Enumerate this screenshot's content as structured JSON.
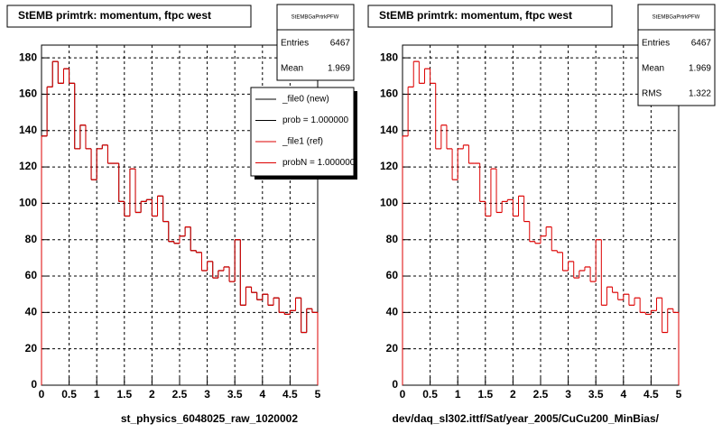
{
  "chart_data": [
    {
      "type": "histogram",
      "title": "StEMB primtrk: momentum, ftpc west",
      "x_label": "st_physics_6048025_raw_1020002",
      "bins": [
        0,
        0.1,
        0.2,
        0.3,
        0.4,
        0.5,
        0.6,
        0.7,
        0.8,
        0.9,
        1,
        1.1,
        1.2,
        1.3,
        1.4,
        1.5,
        1.6,
        1.7,
        1.8,
        1.9,
        2,
        2.1,
        2.2,
        2.3,
        2.4,
        2.5,
        2.6,
        2.7,
        2.8,
        2.9,
        3,
        3.1,
        3.2,
        3.3,
        3.4,
        3.5,
        3.6,
        3.7,
        3.8,
        3.9,
        4,
        4.1,
        4.2,
        4.3,
        4.4,
        4.5,
        4.6,
        4.7,
        4.8,
        4.9,
        5
      ],
      "series": [
        {
          "name": "_file0 (new)",
          "color": "#000000",
          "values": [
            137,
            164,
            178,
            166,
            174,
            166,
            130,
            143,
            130,
            113,
            130,
            132,
            122,
            122,
            101,
            93,
            119,
            95,
            101,
            102,
            93,
            104,
            90,
            79,
            78,
            82,
            87,
            74,
            73,
            63,
            68,
            59,
            63,
            65,
            57,
            80,
            44,
            54,
            51,
            47,
            50,
            44,
            48,
            40,
            39,
            41,
            48,
            29,
            42,
            40
          ]
        },
        {
          "name": "_file1 (ref)",
          "color": "#dd0000",
          "values": [
            137,
            164,
            178,
            166,
            174,
            166,
            130,
            143,
            130,
            113,
            130,
            132,
            122,
            122,
            101,
            93,
            119,
            95,
            101,
            102,
            93,
            104,
            90,
            79,
            78,
            82,
            87,
            74,
            73,
            63,
            68,
            59,
            63,
            65,
            57,
            80,
            44,
            54,
            51,
            47,
            50,
            44,
            48,
            40,
            39,
            41,
            48,
            29,
            42,
            40
          ]
        }
      ],
      "legend_notes": [
        "prob = 1.000000",
        "probN = 1.000000"
      ],
      "stats": {
        "title": "StEMBGaPrtrkPFW",
        "rows": [
          {
            "label": "Entries",
            "value": 6467
          },
          {
            "label": "Mean",
            "value": 1.969
          }
        ]
      },
      "xlim": [
        0,
        5
      ],
      "ylim": [
        0,
        187
      ],
      "xticks": [
        0,
        0.5,
        1,
        1.5,
        2,
        2.5,
        3,
        3.5,
        4,
        4.5,
        5
      ],
      "yticks": [
        0,
        20,
        40,
        60,
        80,
        100,
        120,
        140,
        160,
        180
      ],
      "grid": true
    },
    {
      "type": "histogram",
      "title": "StEMB primtrk: momentum, ftpc west",
      "x_label": "dev/daq_sl302.ittf/Sat/year_2005/CuCu200_MinBias/",
      "bins": [
        0,
        0.1,
        0.2,
        0.3,
        0.4,
        0.5,
        0.6,
        0.7,
        0.8,
        0.9,
        1,
        1.1,
        1.2,
        1.3,
        1.4,
        1.5,
        1.6,
        1.7,
        1.8,
        1.9,
        2,
        2.1,
        2.2,
        2.3,
        2.4,
        2.5,
        2.6,
        2.7,
        2.8,
        2.9,
        3,
        3.1,
        3.2,
        3.3,
        3.4,
        3.5,
        3.6,
        3.7,
        3.8,
        3.9,
        4,
        4.1,
        4.2,
        4.3,
        4.4,
        4.5,
        4.6,
        4.7,
        4.8,
        4.9,
        5
      ],
      "series": [
        {
          "color": "#dd0000",
          "values": [
            137,
            164,
            178,
            166,
            174,
            166,
            130,
            143,
            130,
            113,
            130,
            132,
            122,
            122,
            101,
            93,
            119,
            95,
            101,
            102,
            93,
            104,
            90,
            79,
            78,
            82,
            87,
            74,
            73,
            63,
            68,
            59,
            63,
            65,
            57,
            80,
            44,
            54,
            51,
            47,
            50,
            44,
            48,
            40,
            39,
            41,
            48,
            29,
            42,
            40
          ]
        }
      ],
      "stats": {
        "title": "StEMBGaPrtrkPFW",
        "rows": [
          {
            "label": "Entries",
            "value": 6467
          },
          {
            "label": "Mean",
            "value": 1.969
          },
          {
            "label": "RMS",
            "value": 1.322
          }
        ]
      },
      "xlim": [
        0,
        5
      ],
      "ylim": [
        0,
        187
      ],
      "xticks": [
        0,
        0.5,
        1,
        1.5,
        2,
        2.5,
        3,
        3.5,
        4,
        4.5,
        5
      ],
      "yticks": [
        0,
        20,
        40,
        60,
        80,
        100,
        120,
        140,
        160,
        180
      ],
      "grid": true
    }
  ]
}
